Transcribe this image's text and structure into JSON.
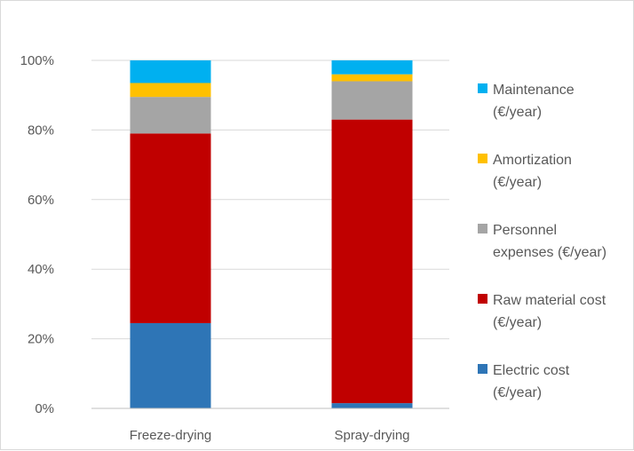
{
  "chart_data": {
    "type": "bar",
    "stacked": true,
    "percent_stacked": true,
    "categories": [
      "Freeze-drying",
      "Spray-drying"
    ],
    "series": [
      {
        "name": "Electric cost (€/year)",
        "name_lines": [
          "Electric cost",
          "(€/year)"
        ],
        "color": "#2E75B6",
        "values": [
          24.5,
          1.5
        ]
      },
      {
        "name": "Raw material cost (€/year)",
        "name_lines": [
          "Raw material cost",
          "(€/year)"
        ],
        "color": "#C00000",
        "values": [
          54.5,
          81.5
        ]
      },
      {
        "name": "Personnel expenses (€/year)",
        "name_lines": [
          "Personnel",
          "expenses (€/year)"
        ],
        "color": "#A5A5A5",
        "values": [
          10.5,
          11
        ]
      },
      {
        "name": "Amortization (€/year)",
        "name_lines": [
          "Amortization",
          "(€/year)"
        ],
        "color": "#FFC000",
        "values": [
          4,
          2
        ]
      },
      {
        "name": "Maintenance (€/year)",
        "name_lines": [
          "Maintenance",
          "(€/year)"
        ],
        "color": "#00B0F0",
        "values": [
          6.5,
          4
        ]
      }
    ],
    "yticks": [
      "0%",
      "20%",
      "40%",
      "60%",
      "80%",
      "100%"
    ],
    "ylim": [
      0,
      100
    ],
    "grid": true,
    "legend_position": "right",
    "title": "",
    "xlabel": "",
    "ylabel": ""
  }
}
